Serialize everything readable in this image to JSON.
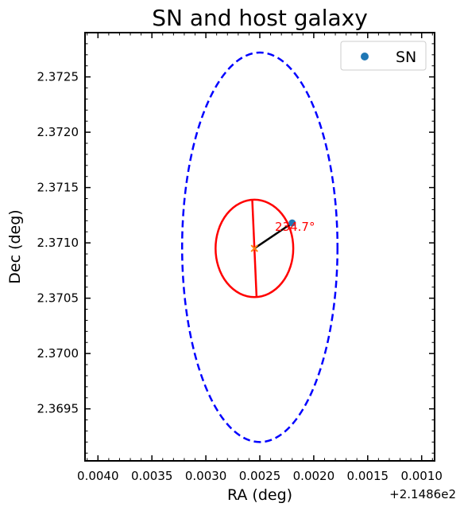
{
  "chart_data": {
    "type": "scatter",
    "title": "SN and host galaxy",
    "xlabel": "RA (deg)",
    "ylabel": "Dec (deg)",
    "x_offset_label": "+2.1486e2",
    "x_axis_inverted": true,
    "xlim": [
      0.00412,
      0.00088
    ],
    "ylim": [
      2.36903,
      2.3729
    ],
    "x_ticks": [
      {
        "value": 0.004,
        "label": "0.0040"
      },
      {
        "value": 0.0035,
        "label": "0.0035"
      },
      {
        "value": 0.003,
        "label": "0.0030"
      },
      {
        "value": 0.0025,
        "label": "0.0025"
      },
      {
        "value": 0.002,
        "label": "0.0020"
      },
      {
        "value": 0.0015,
        "label": "0.0015"
      },
      {
        "value": 0.001,
        "label": "0.0010"
      }
    ],
    "y_ticks": [
      {
        "value": 2.3695,
        "label": "2.3695"
      },
      {
        "value": 2.37,
        "label": "2.3700"
      },
      {
        "value": 2.3705,
        "label": "2.3705"
      },
      {
        "value": 2.371,
        "label": "2.3710"
      },
      {
        "value": 2.3715,
        "label": "2.3715"
      },
      {
        "value": 2.372,
        "label": "2.3720"
      },
      {
        "value": 2.3725,
        "label": "2.3725"
      }
    ],
    "legend": {
      "position": "upper-right",
      "entries": [
        {
          "label": "SN",
          "color": "#1f77b4",
          "marker": "circle"
        }
      ]
    },
    "sn_point": {
      "x": 0.0022,
      "y": 2.37118,
      "color": "#1f77b4"
    },
    "host_center": {
      "x": 0.00255,
      "y": 2.37095,
      "color": "#ff7f0e",
      "marker": "x"
    },
    "inner_ellipse": {
      "cx": 0.00255,
      "cy": 2.37095,
      "rx": 0.00036,
      "ry": 0.00044,
      "color": "#ff0000"
    },
    "outer_ellipse": {
      "cx": 0.0025,
      "cy": 2.37096,
      "rx": 0.00072,
      "ry": 0.00176,
      "color": "#0000ff",
      "dash": "dashed"
    },
    "major_axis_line": {
      "x1": 0.00257,
      "y1": 2.37109,
      "x2": 0.00253,
      "y2": 2.37081,
      "color": "#ff0000"
    },
    "connector_line": {
      "x1": 0.00255,
      "y1": 2.37095,
      "x2": 0.0022,
      "y2": 2.37118,
      "color": "#000000"
    },
    "angle_annotation": {
      "text": "234.7°",
      "x": 0.00236,
      "y": 2.37111,
      "color": "#ff0000"
    }
  }
}
